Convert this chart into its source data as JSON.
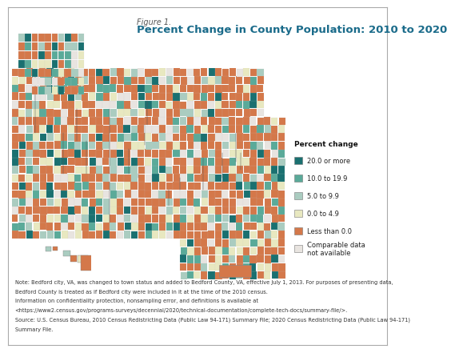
{
  "figure_label": "Figure 1.",
  "title": "Percent Change in County Population: 2010 to 2020",
  "title_color": "#1a6b8a",
  "title_fontsize": 9.5,
  "figure_label_fontsize": 7,
  "figure_label_color": "#555555",
  "legend_title": "Percent change",
  "legend_title_fontsize": 6.5,
  "legend_fontsize": 6,
  "legend_categories": [
    "20.0 or more",
    "10.0 to 19.9",
    "5.0 to 9.9",
    "0.0 to 4.9",
    "Less than 0.0",
    "Comparable data\nnot available"
  ],
  "legend_colors": [
    "#1a7070",
    "#5aaa99",
    "#aaccc0",
    "#e8e8c0",
    "#d4784a",
    "#e8e4e0"
  ],
  "bg_color": "#ffffff",
  "border_color": "#aaaaaa",
  "note_lines": [
    "Note: Bedford city, VA, was changed to town status and added to Bedford County, VA, effective July 1, 2013. For purposes of presenting data,",
    "Bedford County is treated as if Bedford city were included in it at the time of the 2010 census.",
    "Information on confidentiality protection, nonsampling error, and definitions is available at",
    "<https://www2.census.gov/programs-surveys/decennial/2020/technical-documentation/complete-tech-docs/summary-file/>.",
    "Source: U.S. Census Bureau, 2010 Census Redistricting Data (Public Law 94-171) Summary File; 2020 Census Redistricting Data (Public Law 94-171)",
    "Summary File."
  ],
  "note_fontsize": 4.8,
  "note_color": "#333333",
  "state_edge_color": "#555555",
  "state_edge_width": 0.4,
  "county_edge_color": "#bbbbbb",
  "county_edge_width": 0.08,
  "ocean_bg": "#cfe0ed"
}
